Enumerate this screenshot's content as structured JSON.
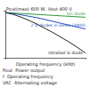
{
  "chart_data": {
    "type": "line",
    "title": "Pout(max) 600 W, Vout 400 V",
    "x_label": "Operating frequency (kHz)",
    "x": [
      0,
      10,
      20,
      30,
      40,
      50,
      60,
      70,
      80,
      90,
      100
    ],
    "series": [
      {
        "name": "SiC diode",
        "color": "#2e9a3a",
        "values": [
          96,
          95,
          94,
          93,
          92,
          91,
          90,
          89,
          88,
          87,
          86
        ]
      },
      {
        "name": "2 Si diodes in series (300V)",
        "color": "#2050c0",
        "values": [
          96,
          94,
          91,
          88,
          85,
          81,
          77,
          73,
          69,
          65,
          61
        ]
      },
      {
        "name": "Ultrafast Si diode",
        "color": "#222222",
        "values": [
          96,
          92,
          86,
          79,
          71,
          62,
          53,
          43,
          33,
          22,
          10
        ]
      }
    ],
    "xlim": [
      0,
      100
    ],
    "ylim": [
      0,
      100
    ],
    "xticks": [
      0,
      100
    ],
    "yticks": [
      0,
      100
    ],
    "tick_labels": false,
    "grid": false,
    "notes": [
      "Pout  Power output",
      "f  Operating frequency",
      "VAC  Alternating voltage"
    ]
  }
}
